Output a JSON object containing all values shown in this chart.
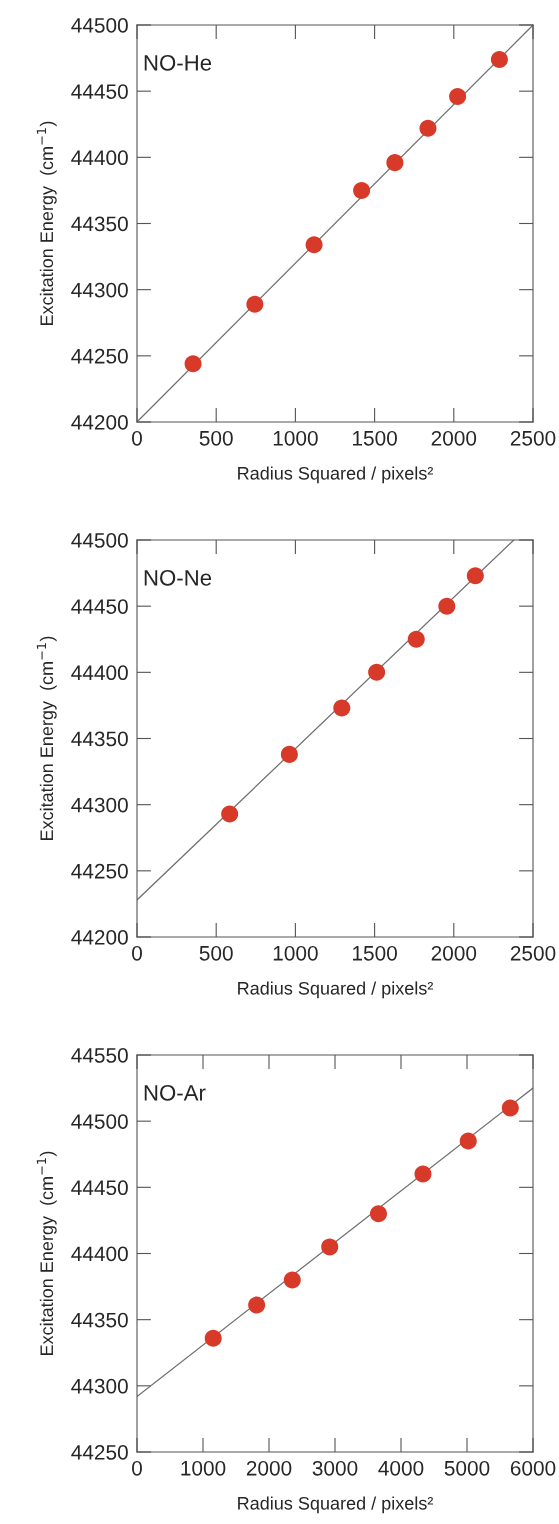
{
  "chart_data": [
    {
      "type": "scatter",
      "xlabel": "Radius Squared / pixels²",
      "ylabel": "Excitation Energy  (cm$^{−1}$)",
      "annotations": [
        "NO-He"
      ],
      "xlim": [
        0,
        2500
      ],
      "ylim": [
        44200,
        44500
      ],
      "xticks": [
        0,
        500,
        1000,
        1500,
        2000,
        2500
      ],
      "yticks": [
        44200,
        44250,
        44300,
        44350,
        44400,
        44450,
        44500
      ],
      "grid": false,
      "legend": false,
      "series": [
        {
          "color": "#d83a2a",
          "marker": "circle",
          "x": [
            354,
            744,
            1118,
            1418,
            1628,
            1837,
            2024,
            2288
          ],
          "values": [
            44244,
            44289,
            44334,
            44375,
            44396,
            44422,
            44446,
            44474
          ]
        },
        {
          "type": "line",
          "color": "#707070",
          "marker": "none",
          "line_style": "solid",
          "x": [
            0,
            2500
          ],
          "values": [
            44200,
            44500
          ]
        }
      ]
    },
    {
      "type": "scatter",
      "xlabel": "Radius Squared / pixels²",
      "ylabel": "Excitation Energy  (cm$^{−1}$)",
      "annotations": [
        "NO-Ne"
      ],
      "xlim": [
        0,
        2500
      ],
      "ylim": [
        44200,
        44500
      ],
      "xticks": [
        0,
        500,
        1000,
        1500,
        2000,
        2500
      ],
      "yticks": [
        44200,
        44250,
        44300,
        44350,
        44400,
        44450,
        44500
      ],
      "grid": false,
      "legend": false,
      "series": [
        {
          "color": "#d83a2a",
          "marker": "circle",
          "x": [
            585,
            962,
            1293,
            1513,
            1763,
            1956,
            2136
          ],
          "values": [
            44293,
            44338,
            44373,
            44400,
            44425,
            44450,
            44473
          ]
        },
        {
          "type": "line",
          "color": "#707070",
          "marker": "none",
          "line_style": "solid",
          "x": [
            0,
            2379
          ],
          "values": [
            44228,
            44500
          ]
        }
      ]
    },
    {
      "type": "scatter",
      "xlabel": "Radius Squared / pixels²",
      "ylabel": "Excitation Energy  (cm$^{−1}$)",
      "annotations": [
        "NO-Ar"
      ],
      "xlim": [
        0,
        6000
      ],
      "ylim": [
        44250,
        44550
      ],
      "xticks": [
        0,
        1000,
        2000,
        3000,
        4000,
        5000,
        6000
      ],
      "yticks": [
        44250,
        44300,
        44350,
        44400,
        44450,
        44500,
        44550
      ],
      "grid": false,
      "legend": false,
      "series": [
        {
          "color": "#d83a2a",
          "marker": "circle",
          "x": [
            1155,
            1813,
            2353,
            2920,
            3659,
            4333,
            5019,
            5656
          ],
          "values": [
            44336,
            44361,
            44380,
            44405,
            44430,
            44460,
            44485,
            44510
          ]
        },
        {
          "type": "line",
          "color": "#707070",
          "marker": "none",
          "line_style": "solid",
          "x": [
            0,
            6000
          ],
          "values": [
            44292,
            44525
          ]
        }
      ]
    }
  ]
}
